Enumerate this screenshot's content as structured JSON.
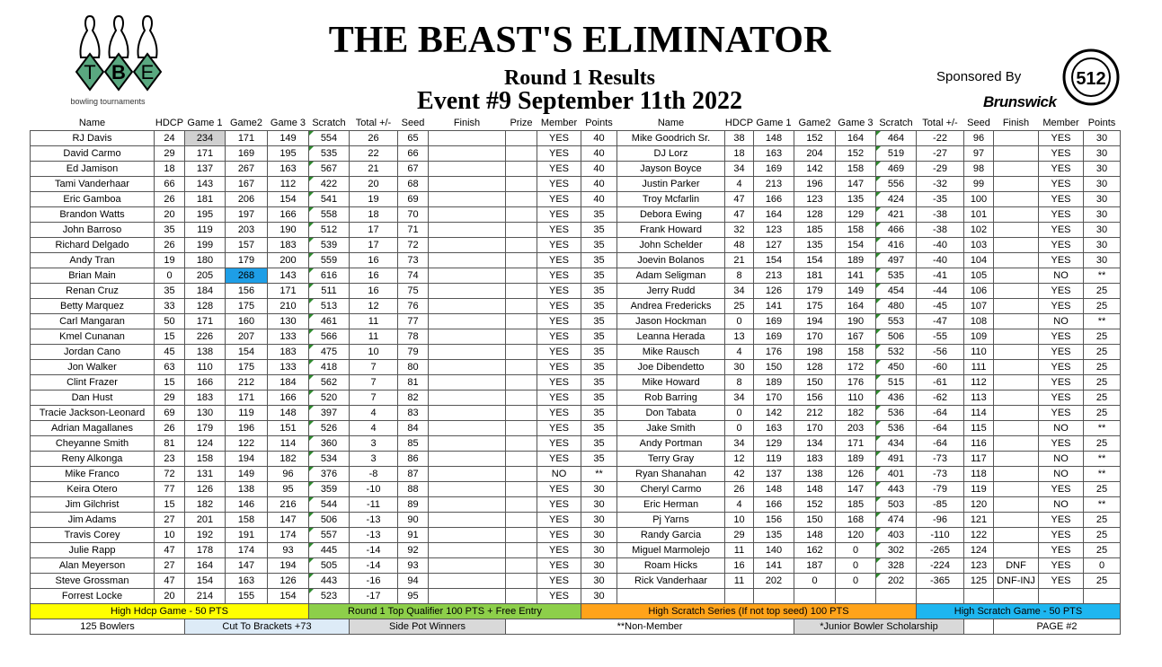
{
  "header": {
    "logo_text": "TBE",
    "logo_caption": "bowling tournaments",
    "title": "THE BEAST'S ELIMINATOR",
    "subtitle": "Round 1 Results",
    "event": "Event #9 September 11th 2022",
    "sponsored_by": "Sponsored By",
    "sponsor": "Brunswick",
    "sponsor2_logo_text": "512"
  },
  "colors": {
    "logo_green": "#5aa880",
    "gray_cell": "#d0d0d0",
    "blue_cell": "#1e9ee6"
  },
  "columns_left": [
    "Name",
    "HDCP",
    "Game 1",
    "Game2",
    "Game 3",
    "Scratch",
    "Total +/-",
    "Seed",
    "Finish",
    "Prize",
    "Member",
    "Points"
  ],
  "columns_right": [
    "Name",
    "HDCP",
    "Game 1",
    "Game2",
    "Game 3",
    "Scratch",
    "Total +/-",
    "Seed",
    "Finish",
    "Member",
    "Points"
  ],
  "rows_left": [
    [
      "RJ Davis",
      "24",
      "234",
      "171",
      "149",
      "554",
      "26",
      "65",
      "",
      "",
      "YES",
      "40"
    ],
    [
      "David Carmo",
      "29",
      "171",
      "169",
      "195",
      "535",
      "22",
      "66",
      "",
      "",
      "YES",
      "40"
    ],
    [
      "Ed Jamison",
      "18",
      "137",
      "267",
      "163",
      "567",
      "21",
      "67",
      "",
      "",
      "YES",
      "40"
    ],
    [
      "Tami Vanderhaar",
      "66",
      "143",
      "167",
      "112",
      "422",
      "20",
      "68",
      "",
      "",
      "YES",
      "40"
    ],
    [
      "Eric Gamboa",
      "26",
      "181",
      "206",
      "154",
      "541",
      "19",
      "69",
      "",
      "",
      "YES",
      "40"
    ],
    [
      "Brandon Watts",
      "20",
      "195",
      "197",
      "166",
      "558",
      "18",
      "70",
      "",
      "",
      "YES",
      "35"
    ],
    [
      "John Barroso",
      "35",
      "119",
      "203",
      "190",
      "512",
      "17",
      "71",
      "",
      "",
      "YES",
      "35"
    ],
    [
      "Richard Delgado",
      "26",
      "199",
      "157",
      "183",
      "539",
      "17",
      "72",
      "",
      "",
      "YES",
      "35"
    ],
    [
      "Andy Tran",
      "19",
      "180",
      "179",
      "200",
      "559",
      "16",
      "73",
      "",
      "",
      "YES",
      "35"
    ],
    [
      "Brian Main",
      "0",
      "205",
      "268",
      "143",
      "616",
      "16",
      "74",
      "",
      "",
      "YES",
      "35"
    ],
    [
      "Renan Cruz",
      "35",
      "184",
      "156",
      "171",
      "511",
      "16",
      "75",
      "",
      "",
      "YES",
      "35"
    ],
    [
      "Betty Marquez",
      "33",
      "128",
      "175",
      "210",
      "513",
      "12",
      "76",
      "",
      "",
      "YES",
      "35"
    ],
    [
      "Carl Mangaran",
      "50",
      "171",
      "160",
      "130",
      "461",
      "11",
      "77",
      "",
      "",
      "YES",
      "35"
    ],
    [
      "Kmel Cunanan",
      "15",
      "226",
      "207",
      "133",
      "566",
      "11",
      "78",
      "",
      "",
      "YES",
      "35"
    ],
    [
      "Jordan Cano",
      "45",
      "138",
      "154",
      "183",
      "475",
      "10",
      "79",
      "",
      "",
      "YES",
      "35"
    ],
    [
      "Jon Walker",
      "63",
      "110",
      "175",
      "133",
      "418",
      "7",
      "80",
      "",
      "",
      "YES",
      "35"
    ],
    [
      "Clint Frazer",
      "15",
      "166",
      "212",
      "184",
      "562",
      "7",
      "81",
      "",
      "",
      "YES",
      "35"
    ],
    [
      "Dan Hust",
      "29",
      "183",
      "171",
      "166",
      "520",
      "7",
      "82",
      "",
      "",
      "YES",
      "35"
    ],
    [
      "Tracie Jackson-Leonard",
      "69",
      "130",
      "119",
      "148",
      "397",
      "4",
      "83",
      "",
      "",
      "YES",
      "35"
    ],
    [
      "Adrian Magallanes",
      "26",
      "179",
      "196",
      "151",
      "526",
      "4",
      "84",
      "",
      "",
      "YES",
      "35"
    ],
    [
      "Cheyanne Smith",
      "81",
      "124",
      "122",
      "114",
      "360",
      "3",
      "85",
      "",
      "",
      "YES",
      "35"
    ],
    [
      "Reny Alkonga",
      "23",
      "158",
      "194",
      "182",
      "534",
      "3",
      "86",
      "",
      "",
      "YES",
      "35"
    ],
    [
      "Mike Franco",
      "72",
      "131",
      "149",
      "96",
      "376",
      "-8",
      "87",
      "",
      "",
      "NO",
      "**"
    ],
    [
      "Keira Otero",
      "77",
      "126",
      "138",
      "95",
      "359",
      "-10",
      "88",
      "",
      "",
      "YES",
      "30"
    ],
    [
      "Jim Gilchrist",
      "15",
      "182",
      "146",
      "216",
      "544",
      "-11",
      "89",
      "",
      "",
      "YES",
      "30"
    ],
    [
      "Jim Adams",
      "27",
      "201",
      "158",
      "147",
      "506",
      "-13",
      "90",
      "",
      "",
      "YES",
      "30"
    ],
    [
      "Travis Corey",
      "10",
      "192",
      "191",
      "174",
      "557",
      "-13",
      "91",
      "",
      "",
      "YES",
      "30"
    ],
    [
      "Julie Rapp",
      "47",
      "178",
      "174",
      "93",
      "445",
      "-14",
      "92",
      "",
      "",
      "YES",
      "30"
    ],
    [
      "Alan Meyerson",
      "27",
      "164",
      "147",
      "194",
      "505",
      "-14",
      "93",
      "",
      "",
      "YES",
      "30"
    ],
    [
      "Steve Grossman",
      "47",
      "154",
      "163",
      "126",
      "443",
      "-16",
      "94",
      "",
      "",
      "YES",
      "30"
    ],
    [
      "Forrest Locke",
      "20",
      "214",
      "155",
      "154",
      "523",
      "-17",
      "95",
      "",
      "",
      "YES",
      "30"
    ]
  ],
  "rows_right": [
    [
      "Mike Goodrich Sr.",
      "38",
      "148",
      "152",
      "164",
      "464",
      "-22",
      "96",
      "",
      "YES",
      "30"
    ],
    [
      "DJ Lorz",
      "18",
      "163",
      "204",
      "152",
      "519",
      "-27",
      "97",
      "",
      "YES",
      "30"
    ],
    [
      "Jayson Boyce",
      "34",
      "169",
      "142",
      "158",
      "469",
      "-29",
      "98",
      "",
      "YES",
      "30"
    ],
    [
      "Justin Parker",
      "4",
      "213",
      "196",
      "147",
      "556",
      "-32",
      "99",
      "",
      "YES",
      "30"
    ],
    [
      "Troy Mcfarlin",
      "47",
      "166",
      "123",
      "135",
      "424",
      "-35",
      "100",
      "",
      "YES",
      "30"
    ],
    [
      "Debora Ewing",
      "47",
      "164",
      "128",
      "129",
      "421",
      "-38",
      "101",
      "",
      "YES",
      "30"
    ],
    [
      "Frank Howard",
      "32",
      "123",
      "185",
      "158",
      "466",
      "-38",
      "102",
      "",
      "YES",
      "30"
    ],
    [
      "John Schelder",
      "48",
      "127",
      "135",
      "154",
      "416",
      "-40",
      "103",
      "",
      "YES",
      "30"
    ],
    [
      "Joevin Bolanos",
      "21",
      "154",
      "154",
      "189",
      "497",
      "-40",
      "104",
      "",
      "YES",
      "30"
    ],
    [
      "Adam Seligman",
      "8",
      "213",
      "181",
      "141",
      "535",
      "-41",
      "105",
      "",
      "NO",
      "**"
    ],
    [
      "Jerry Rudd",
      "34",
      "126",
      "179",
      "149",
      "454",
      "-44",
      "106",
      "",
      "YES",
      "25"
    ],
    [
      "Andrea Fredericks",
      "25",
      "141",
      "175",
      "164",
      "480",
      "-45",
      "107",
      "",
      "YES",
      "25"
    ],
    [
      "Jason Hockman",
      "0",
      "169",
      "194",
      "190",
      "553",
      "-47",
      "108",
      "",
      "NO",
      "**"
    ],
    [
      "Leanna Herada",
      "13",
      "169",
      "170",
      "167",
      "506",
      "-55",
      "109",
      "",
      "YES",
      "25"
    ],
    [
      "Mike Rausch",
      "4",
      "176",
      "198",
      "158",
      "532",
      "-56",
      "110",
      "",
      "YES",
      "25"
    ],
    [
      "Joe Dibendetto",
      "30",
      "150",
      "128",
      "172",
      "450",
      "-60",
      "111",
      "",
      "YES",
      "25"
    ],
    [
      "Mike Howard",
      "8",
      "189",
      "150",
      "176",
      "515",
      "-61",
      "112",
      "",
      "YES",
      "25"
    ],
    [
      "Rob Barring",
      "34",
      "170",
      "156",
      "110",
      "436",
      "-62",
      "113",
      "",
      "YES",
      "25"
    ],
    [
      "Don Tabata",
      "0",
      "142",
      "212",
      "182",
      "536",
      "-64",
      "114",
      "",
      "YES",
      "25"
    ],
    [
      "Jake Smith",
      "0",
      "163",
      "170",
      "203",
      "536",
      "-64",
      "115",
      "",
      "NO",
      "**"
    ],
    [
      "Andy Portman",
      "34",
      "129",
      "134",
      "171",
      "434",
      "-64",
      "116",
      "",
      "YES",
      "25"
    ],
    [
      "Terry Gray",
      "12",
      "119",
      "183",
      "189",
      "491",
      "-73",
      "117",
      "",
      "NO",
      "**"
    ],
    [
      "Ryan Shanahan",
      "42",
      "137",
      "138",
      "126",
      "401",
      "-73",
      "118",
      "",
      "NO",
      "**"
    ],
    [
      "Cheryl Carmo",
      "26",
      "148",
      "148",
      "147",
      "443",
      "-79",
      "119",
      "",
      "YES",
      "25"
    ],
    [
      "Eric Herman",
      "4",
      "166",
      "152",
      "185",
      "503",
      "-85",
      "120",
      "",
      "NO",
      "**"
    ],
    [
      "Pj Yarns",
      "10",
      "156",
      "150",
      "168",
      "474",
      "-96",
      "121",
      "",
      "YES",
      "25"
    ],
    [
      "Randy Garcia",
      "29",
      "135",
      "148",
      "120",
      "403",
      "-110",
      "122",
      "",
      "YES",
      "25"
    ],
    [
      "Miguel Marmolejo",
      "11",
      "140",
      "162",
      "0",
      "302",
      "-265",
      "124",
      "",
      "YES",
      "25"
    ],
    [
      "Roam Hicks",
      "16",
      "141",
      "187",
      "0",
      "328",
      "-224",
      "123",
      "DNF",
      "YES",
      "0"
    ],
    [
      "Rick Vanderhaar",
      "11",
      "202",
      "0",
      "0",
      "202",
      "-365",
      "125",
      "DNF-INJ",
      "YES",
      "25"
    ],
    [
      "",
      "",
      "",
      "",
      "",
      "",
      "",
      "",
      "",
      "",
      ""
    ]
  ],
  "legend_row1": [
    "High Hdcp Game - 50 PTS",
    "Round 1 Top Qualifier  100 PTS + Free Entry",
    "High Scratch Series (If not top seed) 100 PTS",
    "High Scratch Game - 50 PTS"
  ],
  "legend_row2": [
    "125 Bowlers",
    "Cut To Brackets +73",
    "Side Pot Winners",
    "**Non-Member",
    "*Junior Bowler Scholarship",
    "",
    "PAGE #2"
  ]
}
